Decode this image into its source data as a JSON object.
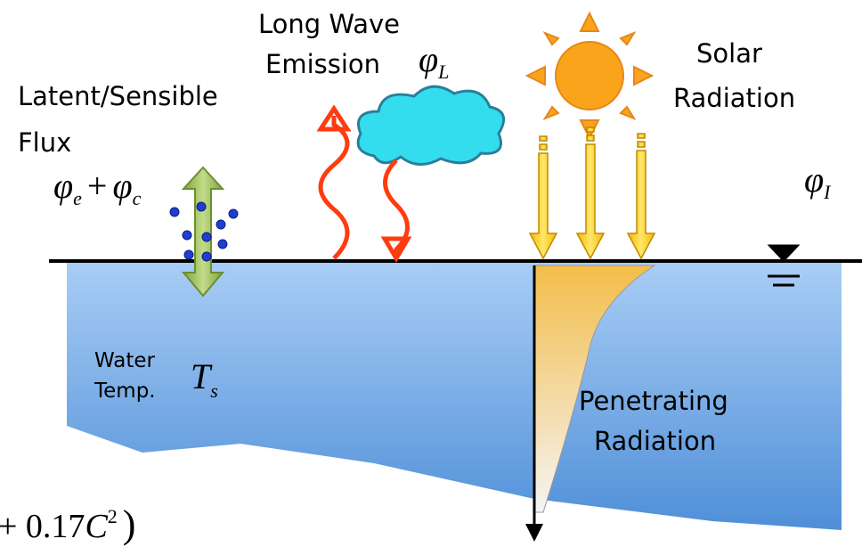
{
  "labels": {
    "long_wave": [
      "Long Wave",
      "Emission"
    ],
    "phi_L": {
      "symbol": "φ",
      "sub": "L"
    },
    "latent": [
      "Latent/Sensible",
      "Flux"
    ],
    "phi_ec": {
      "symbol1": "φ",
      "sub1": "e",
      "plus": "+",
      "symbol2": "φ",
      "sub2": "c"
    },
    "solar": [
      "Solar",
      "Radiation"
    ],
    "phi_I": {
      "symbol": "φ",
      "sub": "I"
    },
    "water_temp": [
      "Water",
      "Temp."
    ],
    "T_s": {
      "symbol": "T",
      "sub": "s"
    },
    "penetrating": [
      "Penetrating",
      "Radiation"
    ],
    "formula": {
      "text": "+ 0.17",
      "var": "C",
      "exp": "2",
      "close": ")"
    }
  }
}
